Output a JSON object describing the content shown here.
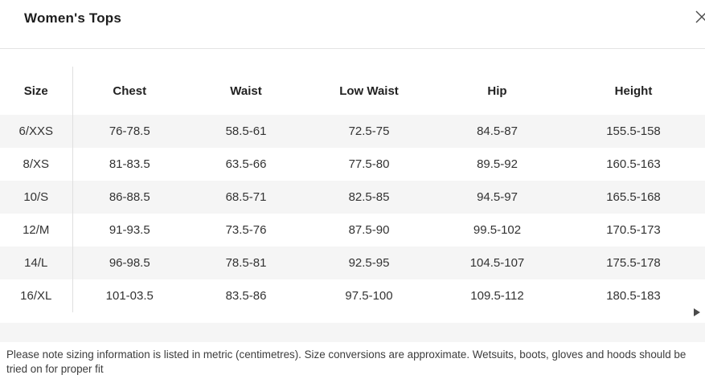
{
  "header": {
    "title": "Women's Tops"
  },
  "table": {
    "columns": [
      "Size",
      "Chest",
      "Waist",
      "Low Waist",
      "Hip",
      "Height"
    ],
    "rows": [
      [
        "6/XXS",
        "76-78.5",
        "58.5-61",
        "72.5-75",
        "84.5-87",
        "155.5-158"
      ],
      [
        "8/XS",
        "81-83.5",
        "63.5-66",
        "77.5-80",
        "89.5-92",
        "160.5-163"
      ],
      [
        "10/S",
        "86-88.5",
        "68.5-71",
        "82.5-85",
        "94.5-97",
        "165.5-168"
      ],
      [
        "12/M",
        "91-93.5",
        "73.5-76",
        "87.5-90",
        "99.5-102",
        "170.5-173"
      ],
      [
        "14/L",
        "96-98.5",
        "78.5-81",
        "92.5-95",
        "104.5-107",
        "175.5-178"
      ],
      [
        "16/XL",
        "101-03.5",
        "83.5-86",
        "97.5-100",
        "109.5-112",
        "180.5-183"
      ]
    ]
  },
  "footer": {
    "disclaimer": "Please note sizing information is listed in metric (centimetres). Size conversions are approximate. Wetsuits, boots, gloves and hoods should be tried on for proper fit"
  },
  "icons": {
    "close": "close-icon",
    "scroll_right": "scroll-right-icon"
  },
  "colors": {
    "stripe": "#f5f5f5",
    "divider": "#e4e4e4",
    "title_text": "#1d1d1d",
    "body_text": "#333333"
  }
}
